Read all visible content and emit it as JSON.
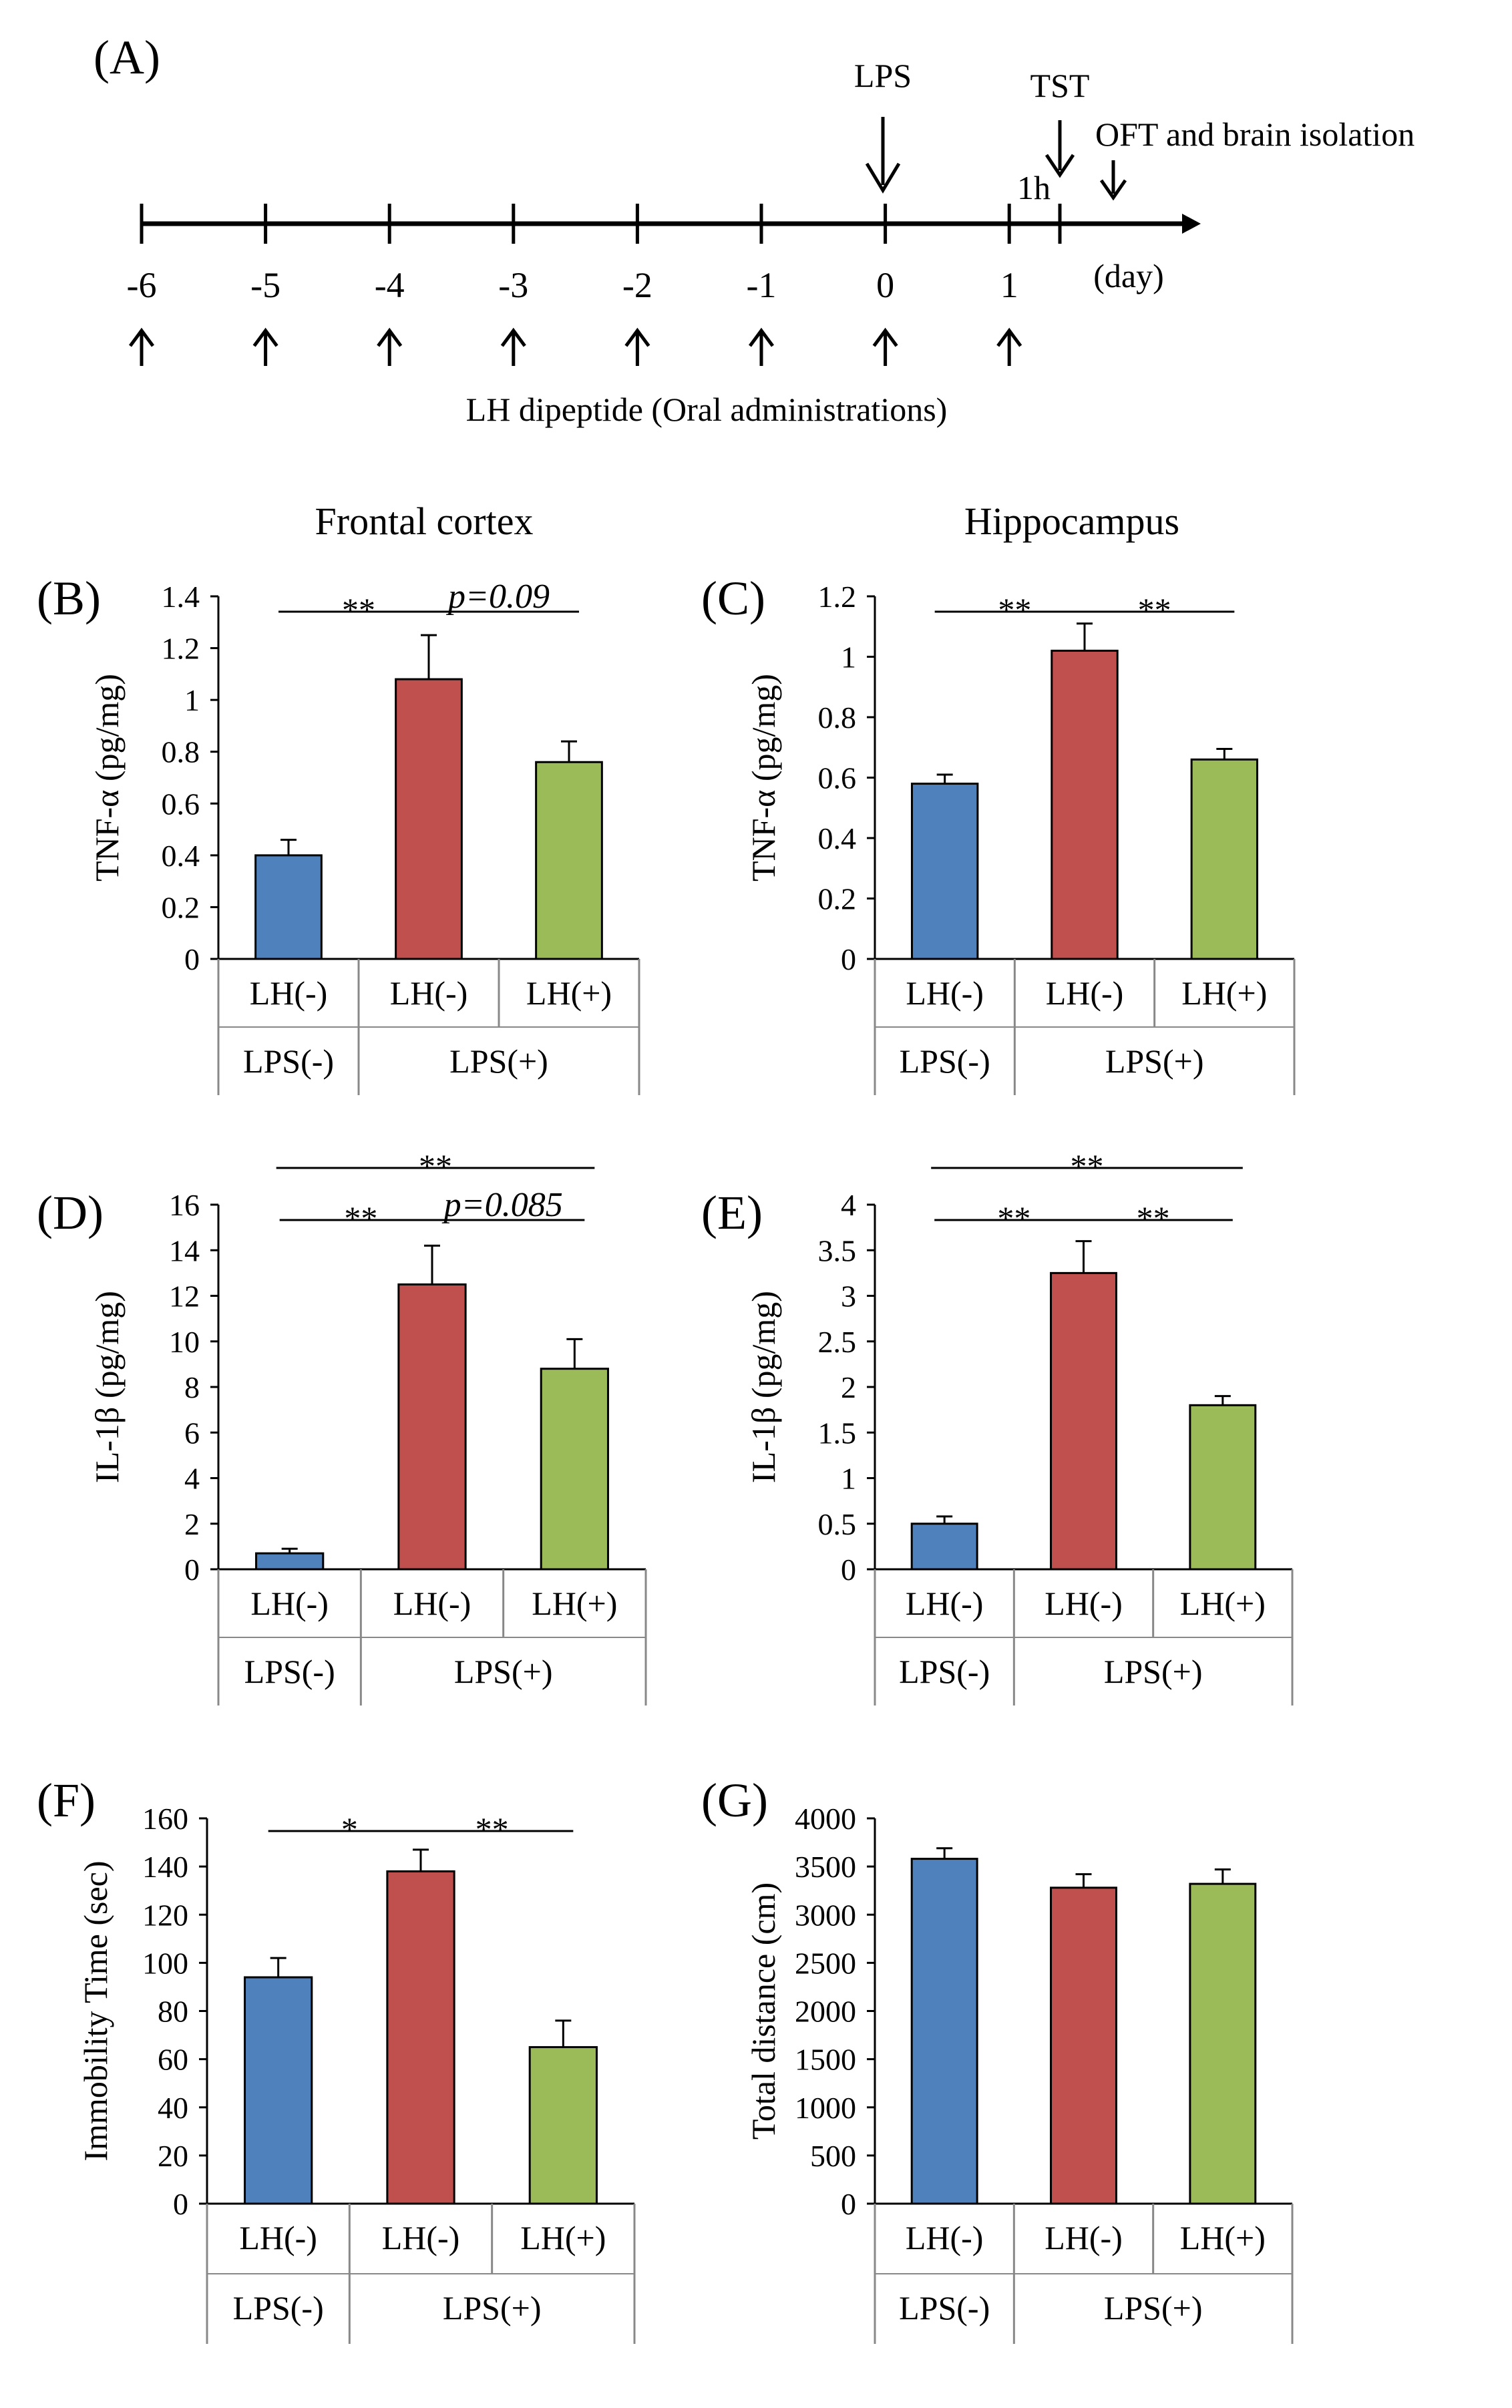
{
  "timeline": {
    "panel": "(A)",
    "days": [
      "-6",
      "-5",
      "-4",
      "-3",
      "-2",
      "-1",
      "0",
      "1"
    ],
    "unit": "(day)",
    "lps_label": "LPS",
    "tst_label": "TST",
    "oft_label": "OFT and brain isolation",
    "hour_label": "1h",
    "admin_label": "LH dipeptide (Oral administrations)"
  },
  "column_titles": {
    "left": "Frontal cortex",
    "right": "Hippocampus"
  },
  "colors": {
    "lh_minus_lps_minus": "#4F81BD",
    "lh_minus_lps_plus": "#C0504D",
    "lh_plus_lps_plus": "#9BBB59"
  },
  "chart_data": [
    {
      "panel": "(B)",
      "type": "bar",
      "ylabel": "TNF-α (pg/mg)",
      "ylim": [
        0,
        1.4
      ],
      "yticks": [
        "0",
        "0.2",
        "0.4",
        "0.6",
        "0.8",
        "1",
        "1.2",
        "1.4"
      ],
      "categories": [
        "LH(-)",
        "LH(-)",
        "LH(+)"
      ],
      "groups": [
        "LPS(-)",
        "LPS(+)"
      ],
      "values": [
        0.4,
        1.08,
        0.76
      ],
      "errors": [
        0.06,
        0.17,
        0.08
      ],
      "significance": [
        {
          "from": 0,
          "to": 1,
          "label": "**"
        },
        {
          "from": 1,
          "to": 2,
          "label": "p=0.09"
        }
      ]
    },
    {
      "panel": "(C)",
      "type": "bar",
      "ylabel": "TNF-α (pg/mg)",
      "ylim": [
        0,
        1.2
      ],
      "yticks": [
        "0",
        "0.2",
        "0.4",
        "0.6",
        "0.8",
        "1",
        "1.2"
      ],
      "categories": [
        "LH(-)",
        "LH(-)",
        "LH(+)"
      ],
      "groups": [
        "LPS(-)",
        "LPS(+)"
      ],
      "values": [
        0.58,
        1.02,
        0.66
      ],
      "errors": [
        0.03,
        0.09,
        0.035
      ],
      "significance": [
        {
          "from": 0,
          "to": 1,
          "label": "**"
        },
        {
          "from": 1,
          "to": 2,
          "label": "**"
        }
      ]
    },
    {
      "panel": "(D)",
      "type": "bar",
      "ylabel": "IL-1β (pg/mg)",
      "ylim": [
        0,
        16
      ],
      "yticks": [
        "0",
        "2",
        "4",
        "6",
        "8",
        "10",
        "12",
        "14",
        "16"
      ],
      "categories": [
        "LH(-)",
        "LH(-)",
        "LH(+)"
      ],
      "groups": [
        "LPS(-)",
        "LPS(+)"
      ],
      "values": [
        0.7,
        12.5,
        8.8
      ],
      "errors": [
        0.2,
        1.7,
        1.3
      ],
      "significance": [
        {
          "from": 0,
          "to": 1,
          "label": "**"
        },
        {
          "from": 1,
          "to": 2,
          "label": "p=0.085"
        },
        {
          "from": 0,
          "to": 2,
          "label": "**"
        }
      ]
    },
    {
      "panel": "(E)",
      "type": "bar",
      "ylabel": "IL-1β (pg/mg)",
      "ylim": [
        0,
        4
      ],
      "yticks": [
        "0",
        "0.5",
        "1",
        "1.5",
        "2",
        "2.5",
        "3",
        "3.5",
        "4"
      ],
      "categories": [
        "LH(-)",
        "LH(-)",
        "LH(+)"
      ],
      "groups": [
        "LPS(-)",
        "LPS(+)"
      ],
      "values": [
        0.5,
        3.25,
        1.8
      ],
      "errors": [
        0.08,
        0.35,
        0.1
      ],
      "significance": [
        {
          "from": 0,
          "to": 1,
          "label": "**"
        },
        {
          "from": 1,
          "to": 2,
          "label": "**"
        },
        {
          "from": 0,
          "to": 2,
          "label": "**"
        }
      ]
    },
    {
      "panel": "(F)",
      "type": "bar",
      "ylabel": "Immobility Time (sec)",
      "ylim": [
        0,
        160
      ],
      "yticks": [
        "0",
        "20",
        "40",
        "60",
        "80",
        "100",
        "120",
        "140",
        "160"
      ],
      "categories": [
        "LH(-)",
        "LH(-)",
        "LH(+)"
      ],
      "groups": [
        "LPS(-)",
        "LPS(+)"
      ],
      "values": [
        94,
        138,
        65
      ],
      "errors": [
        8,
        9,
        11
      ],
      "significance": [
        {
          "from": 0,
          "to": 1,
          "label": "*"
        },
        {
          "from": 1,
          "to": 2,
          "label": "**"
        }
      ]
    },
    {
      "panel": "(G)",
      "type": "bar",
      "ylabel": "Total distance (cm)",
      "ylim": [
        0,
        4000
      ],
      "yticks": [
        "0",
        "500",
        "1000",
        "1500",
        "2000",
        "2500",
        "3000",
        "3500",
        "4000"
      ],
      "categories": [
        "LH(-)",
        "LH(-)",
        "LH(+)"
      ],
      "groups": [
        "LPS(-)",
        "LPS(+)"
      ],
      "values": [
        3580,
        3280,
        3320
      ],
      "errors": [
        110,
        140,
        150
      ],
      "significance": []
    }
  ]
}
